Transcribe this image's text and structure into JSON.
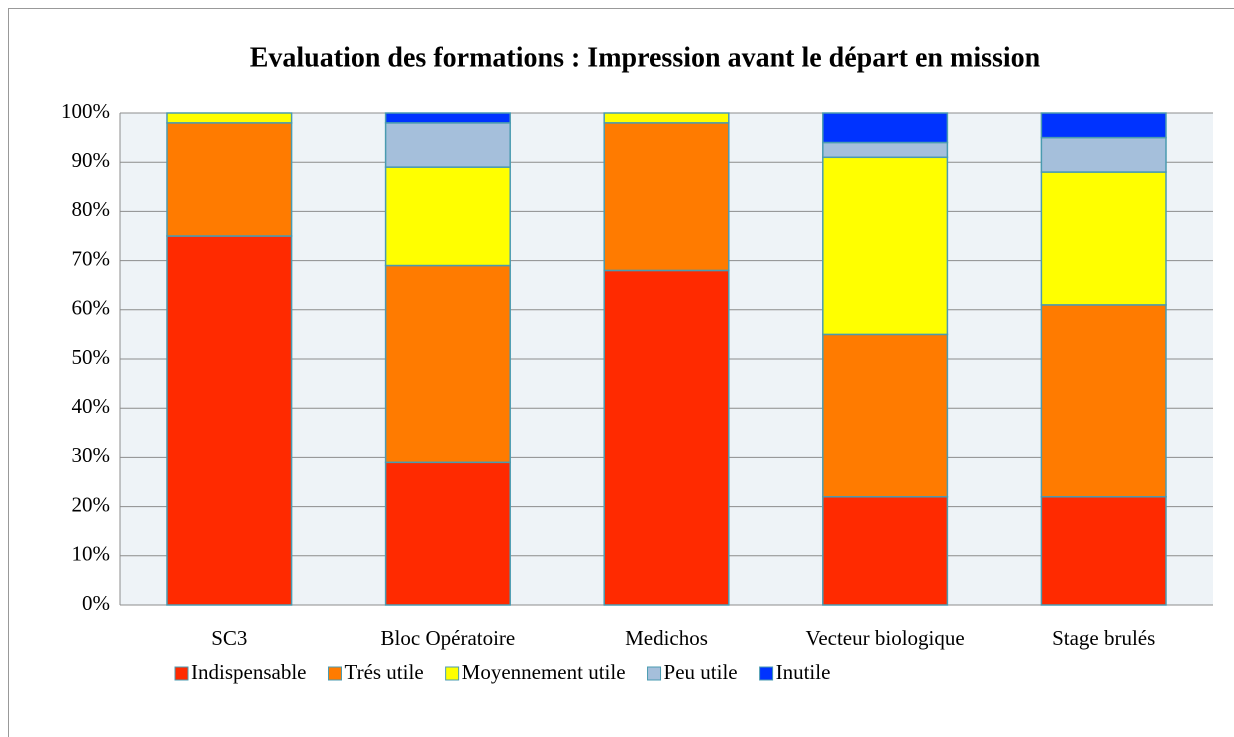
{
  "chart_data": {
    "type": "stacked_bar",
    "title": "Evaluation des formations : Impression avant le départ en mission",
    "categories": [
      "SC3",
      "Bloc Opératoire",
      "Medichos",
      "Vecteur biologique",
      "Stage brulés"
    ],
    "series": [
      {
        "name": "Indispensable",
        "color": "#ff2a00",
        "values": [
          75,
          29,
          68,
          22,
          22
        ]
      },
      {
        "name": "Trés utile",
        "color": "#ff7b00",
        "values": [
          23,
          40,
          30,
          33,
          39
        ]
      },
      {
        "name": "Moyennement utile",
        "color": "#ffff00",
        "values": [
          2,
          20,
          2,
          36,
          27
        ]
      },
      {
        "name": "Peu utile",
        "color": "#a5bfdb",
        "values": [
          0,
          9,
          0,
          3,
          7
        ]
      },
      {
        "name": "Inutile",
        "color": "#0033ff",
        "values": [
          0,
          2,
          0,
          6,
          5
        ]
      }
    ],
    "ylim": [
      0,
      100
    ],
    "yticks": [
      {
        "value": 0,
        "label": "0%"
      },
      {
        "value": 10,
        "label": "10%"
      },
      {
        "value": 20,
        "label": "20%"
      },
      {
        "value": 30,
        "label": "30%"
      },
      {
        "value": 40,
        "label": "40%"
      },
      {
        "value": 50,
        "label": "50%"
      },
      {
        "value": 60,
        "label": "60%"
      },
      {
        "value": 70,
        "label": "70%"
      },
      {
        "value": 80,
        "label": "80%"
      },
      {
        "value": 90,
        "label": "90%"
      },
      {
        "value": 100,
        "label": "100%"
      }
    ],
    "grid": true,
    "legend": "bottom"
  }
}
